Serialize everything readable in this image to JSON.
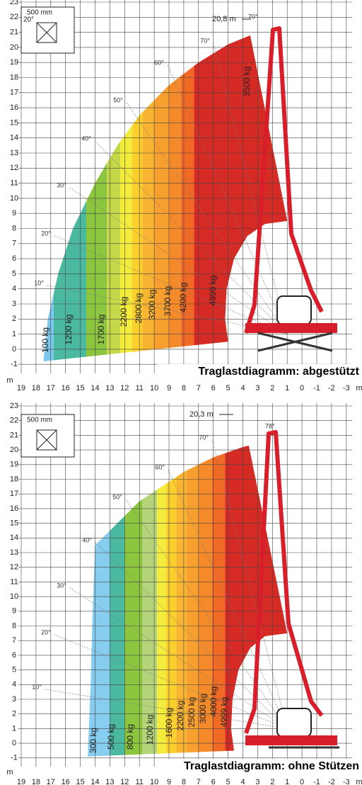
{
  "panels": [
    {
      "title": "Traglastdiagramm: abgestützt",
      "height_label": "20,8 m",
      "tip_angle": "70°",
      "inset_size": "500 mm",
      "inset_angle": "20°",
      "unit": "m",
      "yticks": [
        23,
        22,
        21,
        20,
        19,
        18,
        17,
        16,
        15,
        14,
        13,
        12,
        11,
        10,
        9,
        8,
        7,
        6,
        5,
        4,
        3,
        2,
        1,
        0,
        -1
      ],
      "xticks": [
        19,
        18,
        17,
        16,
        15,
        14,
        13,
        12,
        11,
        10,
        9,
        8,
        7,
        6,
        5,
        4,
        3,
        2,
        1,
        0,
        -1,
        -2,
        -3
      ],
      "angle_labels": [
        "10°",
        "20°",
        "30°",
        "40°",
        "50°",
        "60°",
        "70°"
      ],
      "load_labels": [
        "100 kg",
        "1200 kg",
        "1700 kg",
        "2200 kg",
        "2800 kg",
        "3200 kg",
        "3700 kg",
        "4200 kg",
        "4999 kg",
        "3500 kg"
      ]
    },
    {
      "title": "Traglastdiagramm: ohne Stützen",
      "height_label": "20,3 m",
      "tip_angle": "78°",
      "inset_size": "500 mm",
      "unit": "m",
      "yticks": [
        23,
        22,
        21,
        20,
        19,
        18,
        17,
        16,
        15,
        14,
        13,
        12,
        11,
        10,
        9,
        8,
        7,
        6,
        5,
        4,
        3,
        2,
        1,
        0,
        -1
      ],
      "xticks": [
        19,
        18,
        17,
        16,
        15,
        14,
        13,
        12,
        11,
        10,
        9,
        8,
        7,
        6,
        5,
        4,
        3,
        2,
        1,
        0,
        -1,
        -2,
        -3
      ],
      "angle_labels": [
        "10°",
        "20°",
        "30°",
        "40°",
        "50°",
        "60°",
        "70°"
      ],
      "load_labels": [
        "300 kg",
        "500 kg",
        "800 kg",
        "1200 kg",
        "1600 kg",
        "2200 kg",
        "2500 kg",
        "3000 kg",
        "4000 kg",
        "4999 kg"
      ]
    }
  ]
}
